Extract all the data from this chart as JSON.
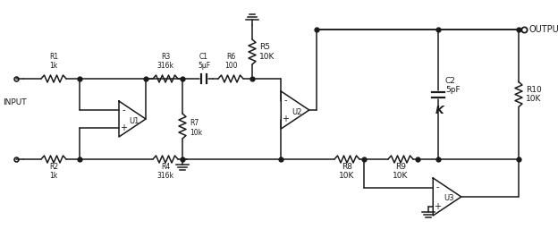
{
  "bg_color": "#ffffff",
  "line_color": "#1a1a1a",
  "fig_width": 6.24,
  "fig_height": 2.75,
  "dpi": 100,
  "labels": {
    "R1": "R1\n1k",
    "R2": "R2\n1k",
    "R3": "R3\n316k",
    "R4": "R4\n316k",
    "C1": "C1\n5μF",
    "R6": "R6\n100",
    "R7": "R7\n10k",
    "U1": "U1",
    "R5": "R5\n10K",
    "U2": "U2",
    "R8": "R8\n10K",
    "R9": "R9\n10K",
    "C2": "C2\n5pF",
    "R10": "R10\n10K",
    "U3": "U3",
    "INPUT": "INPUT",
    "OUTPUT": "OUTPUT"
  }
}
